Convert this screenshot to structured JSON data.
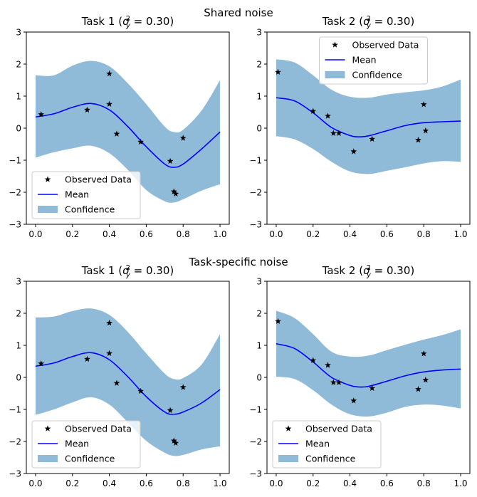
{
  "section_titles": [
    "Shared noise",
    "Task-specific noise"
  ],
  "legend_labels": [
    "Observed Data",
    "Mean",
    "Confidence"
  ],
  "colors": {
    "mean": "#0000ff",
    "band": "#1f77b4",
    "points": "#000000"
  },
  "chart_data": [
    {
      "type": "line",
      "title": "Task 1 (σ²_y = 0.30)",
      "xlim": [
        -0.05,
        1.05
      ],
      "ylim": [
        -3,
        3
      ],
      "xticks": [
        0.0,
        0.2,
        0.4,
        0.6,
        0.8,
        1.0
      ],
      "yticks": [
        -3,
        -2,
        -1,
        0,
        1,
        2,
        3
      ],
      "legend_position": "lower-left",
      "observed": [
        [
          0.03,
          0.43
        ],
        [
          0.28,
          0.57
        ],
        [
          0.4,
          1.7
        ],
        [
          0.4,
          0.75
        ],
        [
          0.44,
          -0.18
        ],
        [
          0.57,
          -0.43
        ],
        [
          0.73,
          -1.03
        ],
        [
          0.75,
          -1.98
        ],
        [
          0.76,
          -2.05
        ],
        [
          0.8,
          -0.31
        ]
      ],
      "mean": [
        [
          0,
          0.35
        ],
        [
          0.1,
          0.45
        ],
        [
          0.2,
          0.65
        ],
        [
          0.3,
          0.77
        ],
        [
          0.4,
          0.57
        ],
        [
          0.5,
          0.05
        ],
        [
          0.6,
          -0.58
        ],
        [
          0.7,
          -1.12
        ],
        [
          0.75,
          -1.22
        ],
        [
          0.8,
          -1.12
        ],
        [
          0.9,
          -0.65
        ],
        [
          1.0,
          -0.12
        ]
      ],
      "upper": [
        [
          0,
          1.65
        ],
        [
          0.1,
          1.65
        ],
        [
          0.2,
          1.95
        ],
        [
          0.3,
          2.1
        ],
        [
          0.4,
          1.93
        ],
        [
          0.5,
          1.4
        ],
        [
          0.6,
          0.75
        ],
        [
          0.7,
          0.05
        ],
        [
          0.75,
          -0.12
        ],
        [
          0.8,
          -0.05
        ],
        [
          0.9,
          0.55
        ],
        [
          1.0,
          1.5
        ]
      ],
      "lower": [
        [
          0,
          -0.92
        ],
        [
          0.1,
          -0.75
        ],
        [
          0.2,
          -0.63
        ],
        [
          0.3,
          -0.55
        ],
        [
          0.4,
          -0.78
        ],
        [
          0.5,
          -1.3
        ],
        [
          0.6,
          -1.93
        ],
        [
          0.7,
          -2.28
        ],
        [
          0.75,
          -2.32
        ],
        [
          0.8,
          -2.22
        ],
        [
          0.9,
          -1.95
        ],
        [
          1.0,
          -1.75
        ]
      ]
    },
    {
      "type": "line",
      "title": "Task 2 (σ²_y = 0.30)",
      "xlim": [
        -0.05,
        1.05
      ],
      "ylim": [
        -3,
        3
      ],
      "xticks": [
        0.0,
        0.2,
        0.4,
        0.6,
        0.8,
        1.0
      ],
      "yticks": [
        -3,
        -2,
        -1,
        0,
        1,
        2,
        3
      ],
      "legend_position": "upper-center",
      "observed": [
        [
          0.01,
          1.75
        ],
        [
          0.2,
          0.53
        ],
        [
          0.28,
          0.38
        ],
        [
          0.31,
          -0.16
        ],
        [
          0.34,
          -0.16
        ],
        [
          0.42,
          -0.73
        ],
        [
          0.52,
          -0.34
        ],
        [
          0.77,
          -0.37
        ],
        [
          0.8,
          0.74
        ],
        [
          0.81,
          -0.08
        ]
      ],
      "mean": [
        [
          0,
          0.95
        ],
        [
          0.1,
          0.85
        ],
        [
          0.2,
          0.48
        ],
        [
          0.3,
          0.02
        ],
        [
          0.4,
          -0.23
        ],
        [
          0.45,
          -0.27
        ],
        [
          0.5,
          -0.24
        ],
        [
          0.6,
          -0.08
        ],
        [
          0.7,
          0.08
        ],
        [
          0.8,
          0.17
        ],
        [
          0.9,
          0.2
        ],
        [
          1.0,
          0.22
        ]
      ],
      "upper": [
        [
          0,
          2.15
        ],
        [
          0.1,
          2.05
        ],
        [
          0.2,
          1.65
        ],
        [
          0.3,
          1.2
        ],
        [
          0.4,
          0.98
        ],
        [
          0.5,
          0.95
        ],
        [
          0.6,
          1.05
        ],
        [
          0.7,
          1.12
        ],
        [
          0.8,
          1.18
        ],
        [
          0.9,
          1.3
        ],
        [
          1.0,
          1.52
        ]
      ],
      "lower": [
        [
          0,
          -0.25
        ],
        [
          0.1,
          -0.35
        ],
        [
          0.2,
          -0.65
        ],
        [
          0.3,
          -1.05
        ],
        [
          0.4,
          -1.35
        ],
        [
          0.5,
          -1.43
        ],
        [
          0.6,
          -1.33
        ],
        [
          0.7,
          -1.22
        ],
        [
          0.8,
          -1.1
        ],
        [
          0.9,
          -1.03
        ],
        [
          1.0,
          -1.05
        ]
      ]
    },
    {
      "type": "line",
      "title": "Task 1 (σ²_y = 0.30)",
      "xlim": [
        -0.05,
        1.05
      ],
      "ylim": [
        -3,
        3
      ],
      "xticks": [
        0.0,
        0.2,
        0.4,
        0.6,
        0.8,
        1.0
      ],
      "yticks": [
        -3,
        -2,
        -1,
        0,
        1,
        2,
        3
      ],
      "legend_position": "lower-left",
      "observed": [
        [
          0.03,
          0.43
        ],
        [
          0.28,
          0.57
        ],
        [
          0.4,
          1.7
        ],
        [
          0.4,
          0.75
        ],
        [
          0.44,
          -0.18
        ],
        [
          0.57,
          -0.43
        ],
        [
          0.73,
          -1.03
        ],
        [
          0.75,
          -1.98
        ],
        [
          0.76,
          -2.05
        ],
        [
          0.8,
          -0.31
        ]
      ],
      "mean": [
        [
          0,
          0.35
        ],
        [
          0.1,
          0.45
        ],
        [
          0.2,
          0.65
        ],
        [
          0.3,
          0.77
        ],
        [
          0.4,
          0.55
        ],
        [
          0.5,
          0.02
        ],
        [
          0.6,
          -0.6
        ],
        [
          0.7,
          -1.08
        ],
        [
          0.75,
          -1.15
        ],
        [
          0.8,
          -1.08
        ],
        [
          0.9,
          -0.8
        ],
        [
          1.0,
          -0.38
        ]
      ],
      "upper": [
        [
          0,
          1.87
        ],
        [
          0.1,
          1.9
        ],
        [
          0.2,
          2.07
        ],
        [
          0.3,
          2.15
        ],
        [
          0.4,
          1.95
        ],
        [
          0.5,
          1.42
        ],
        [
          0.6,
          0.75
        ],
        [
          0.7,
          0.12
        ],
        [
          0.75,
          -0.05
        ],
        [
          0.8,
          -0.02
        ],
        [
          0.9,
          0.4
        ],
        [
          1.0,
          1.35
        ]
      ],
      "lower": [
        [
          0,
          -1.17
        ],
        [
          0.1,
          -1.0
        ],
        [
          0.2,
          -0.78
        ],
        [
          0.3,
          -0.62
        ],
        [
          0.4,
          -0.85
        ],
        [
          0.5,
          -1.4
        ],
        [
          0.6,
          -1.98
        ],
        [
          0.7,
          -2.35
        ],
        [
          0.75,
          -2.45
        ],
        [
          0.8,
          -2.42
        ],
        [
          0.9,
          -2.25
        ],
        [
          1.0,
          -2.15
        ]
      ]
    },
    {
      "type": "line",
      "title": "Task 2 (σ²_y = 0.30)",
      "xlim": [
        -0.05,
        1.05
      ],
      "ylim": [
        -3,
        3
      ],
      "xticks": [
        0.0,
        0.2,
        0.4,
        0.6,
        0.8,
        1.0
      ],
      "yticks": [
        -3,
        -2,
        -1,
        0,
        1,
        2,
        3
      ],
      "legend_position": "lower-left",
      "observed": [
        [
          0.01,
          1.75
        ],
        [
          0.2,
          0.53
        ],
        [
          0.28,
          0.38
        ],
        [
          0.31,
          -0.16
        ],
        [
          0.34,
          -0.16
        ],
        [
          0.42,
          -0.73
        ],
        [
          0.52,
          -0.34
        ],
        [
          0.77,
          -0.37
        ],
        [
          0.8,
          0.74
        ],
        [
          0.81,
          -0.08
        ]
      ],
      "mean": [
        [
          0,
          1.05
        ],
        [
          0.1,
          0.9
        ],
        [
          0.2,
          0.48
        ],
        [
          0.3,
          0.0
        ],
        [
          0.4,
          -0.25
        ],
        [
          0.45,
          -0.3
        ],
        [
          0.5,
          -0.28
        ],
        [
          0.6,
          -0.12
        ],
        [
          0.7,
          0.05
        ],
        [
          0.8,
          0.17
        ],
        [
          0.9,
          0.23
        ],
        [
          1.0,
          0.26
        ]
      ],
      "upper": [
        [
          0,
          2.08
        ],
        [
          0.1,
          1.85
        ],
        [
          0.2,
          1.35
        ],
        [
          0.3,
          0.8
        ],
        [
          0.4,
          0.65
        ],
        [
          0.5,
          0.68
        ],
        [
          0.6,
          0.85
        ],
        [
          0.7,
          1.02
        ],
        [
          0.8,
          1.18
        ],
        [
          0.9,
          1.32
        ],
        [
          1.0,
          1.5
        ]
      ],
      "lower": [
        [
          0,
          0.02
        ],
        [
          0.1,
          -0.05
        ],
        [
          0.2,
          -0.4
        ],
        [
          0.3,
          -0.85
        ],
        [
          0.4,
          -1.15
        ],
        [
          0.5,
          -1.22
        ],
        [
          0.6,
          -1.1
        ],
        [
          0.7,
          -0.92
        ],
        [
          0.8,
          -0.85
        ],
        [
          0.9,
          -0.88
        ],
        [
          1.0,
          -0.97
        ]
      ]
    }
  ]
}
